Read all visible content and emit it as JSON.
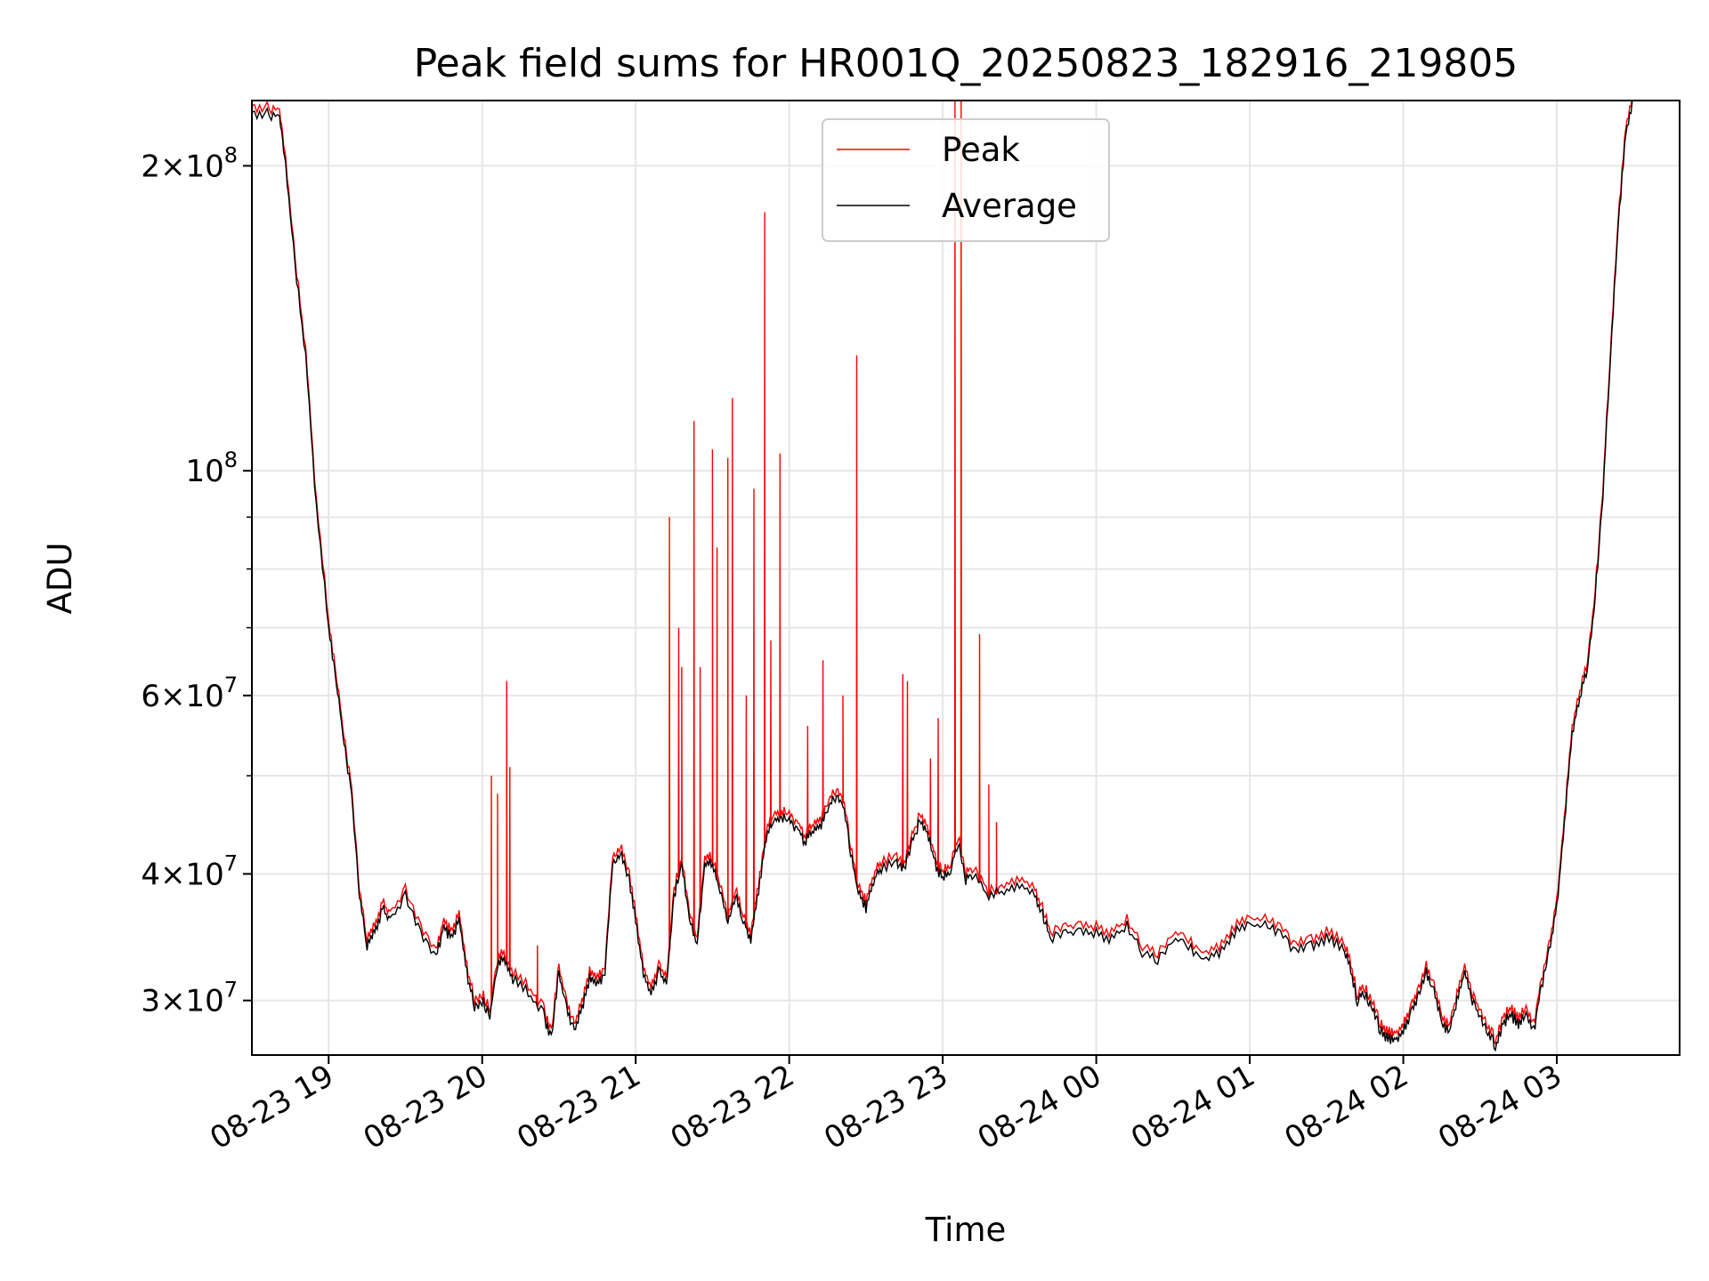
{
  "chart_data": {
    "type": "line",
    "title": "Peak field sums for HR001Q_20250823_182916_219805",
    "xlabel": "Time",
    "ylabel": "ADU",
    "x_unit": "hours since 2025-08-23 00:00 (tick labels show MM-DD HH)",
    "yscale": "log",
    "ylim": [
      26500000,
      232000000
    ],
    "xlim": [
      18.5,
      27.8
    ],
    "grid": true,
    "legend_position": "top-center",
    "x_ticks": [
      {
        "x": 19,
        "label": "08-23 19"
      },
      {
        "x": 20,
        "label": "08-23 20"
      },
      {
        "x": 21,
        "label": "08-23 21"
      },
      {
        "x": 22,
        "label": "08-23 22"
      },
      {
        "x": 23,
        "label": "08-23 23"
      },
      {
        "x": 24,
        "label": "08-24 00"
      },
      {
        "x": 25,
        "label": "08-24 01"
      },
      {
        "x": 26,
        "label": "08-24 02"
      },
      {
        "x": 27,
        "label": "08-24 03"
      }
    ],
    "y_major_ticks": [
      {
        "value": 30000000,
        "mant": "3",
        "exp": "7"
      },
      {
        "value": 40000000,
        "mant": "4",
        "exp": "7"
      },
      {
        "value": 60000000,
        "mant": "6",
        "exp": "7"
      },
      {
        "value": 100000000,
        "mant": "",
        "exp": "8"
      },
      {
        "value": 200000000,
        "mant": "2",
        "exp": "8"
      }
    ],
    "y_minor_ticks": [
      50000000,
      70000000,
      80000000,
      90000000
    ],
    "series": [
      {
        "name": "Average",
        "color": "#000000",
        "points": [
          [
            18.5,
            226000000
          ],
          [
            18.6,
            225000000
          ],
          [
            18.68,
            224000000
          ],
          [
            18.72,
            200000000
          ],
          [
            18.78,
            160000000
          ],
          [
            18.85,
            130000000
          ],
          [
            18.92,
            92000000
          ],
          [
            19.0,
            70000000
          ],
          [
            19.05,
            62000000
          ],
          [
            19.1,
            54000000
          ],
          [
            19.15,
            48000000
          ],
          [
            19.2,
            38000000
          ],
          [
            19.25,
            34000000
          ],
          [
            19.3,
            35000000
          ],
          [
            19.35,
            37000000
          ],
          [
            19.4,
            36000000
          ],
          [
            19.5,
            38000000
          ],
          [
            19.6,
            35000000
          ],
          [
            19.7,
            33000000
          ],
          [
            19.75,
            35500000
          ],
          [
            19.8,
            34500000
          ],
          [
            19.85,
            36000000
          ],
          [
            19.9,
            32000000
          ],
          [
            19.95,
            29500000
          ],
          [
            20.0,
            30000000
          ],
          [
            20.05,
            29000000
          ],
          [
            20.1,
            32500000
          ],
          [
            20.15,
            33000000
          ],
          [
            20.2,
            31500000
          ],
          [
            20.3,
            30500000
          ],
          [
            20.4,
            29000000
          ],
          [
            20.45,
            27500000
          ],
          [
            20.5,
            32000000
          ],
          [
            20.55,
            29500000
          ],
          [
            20.6,
            28000000
          ],
          [
            20.65,
            29500000
          ],
          [
            20.7,
            31500000
          ],
          [
            20.75,
            31000000
          ],
          [
            20.8,
            32000000
          ],
          [
            20.85,
            41000000
          ],
          [
            20.9,
            42000000
          ],
          [
            20.95,
            40000000
          ],
          [
            21.0,
            36000000
          ],
          [
            21.05,
            32000000
          ],
          [
            21.1,
            30500000
          ],
          [
            21.15,
            32000000
          ],
          [
            21.2,
            31000000
          ],
          [
            21.25,
            38000000
          ],
          [
            21.3,
            41000000
          ],
          [
            21.35,
            36000000
          ],
          [
            21.4,
            34000000
          ],
          [
            21.45,
            41000000
          ],
          [
            21.5,
            41000000
          ],
          [
            21.55,
            38500000
          ],
          [
            21.6,
            36000000
          ],
          [
            21.65,
            38000000
          ],
          [
            21.7,
            36000000
          ],
          [
            21.75,
            34500000
          ],
          [
            21.8,
            38500000
          ],
          [
            21.85,
            43500000
          ],
          [
            21.9,
            45000000
          ],
          [
            21.95,
            45500000
          ],
          [
            22.0,
            45000000
          ],
          [
            22.05,
            44500000
          ],
          [
            22.1,
            43000000
          ],
          [
            22.15,
            44000000
          ],
          [
            22.2,
            44500000
          ],
          [
            22.25,
            46500000
          ],
          [
            22.3,
            47500000
          ],
          [
            22.35,
            47000000
          ],
          [
            22.4,
            42000000
          ],
          [
            22.45,
            38500000
          ],
          [
            22.5,
            37000000
          ],
          [
            22.55,
            39500000
          ],
          [
            22.6,
            40500000
          ],
          [
            22.7,
            41000000
          ],
          [
            22.75,
            40500000
          ],
          [
            22.8,
            43000000
          ],
          [
            22.85,
            45000000
          ],
          [
            22.9,
            44000000
          ],
          [
            22.95,
            41000000
          ],
          [
            23.0,
            39500000
          ],
          [
            23.05,
            40500000
          ],
          [
            23.1,
            43000000
          ],
          [
            23.15,
            39500000
          ],
          [
            23.2,
            40000000
          ],
          [
            23.3,
            38000000
          ],
          [
            23.4,
            38500000
          ],
          [
            23.5,
            39000000
          ],
          [
            23.6,
            38000000
          ],
          [
            23.65,
            36500000
          ],
          [
            23.7,
            34500000
          ],
          [
            23.8,
            35000000
          ],
          [
            23.9,
            35000000
          ],
          [
            24.0,
            35000000
          ],
          [
            24.1,
            34500000
          ],
          [
            24.2,
            35500000
          ],
          [
            24.3,
            33500000
          ],
          [
            24.4,
            33000000
          ],
          [
            24.5,
            34500000
          ],
          [
            24.6,
            34000000
          ],
          [
            24.7,
            33000000
          ],
          [
            24.8,
            33500000
          ],
          [
            24.9,
            35000000
          ],
          [
            25.0,
            35500000
          ],
          [
            25.1,
            35500000
          ],
          [
            25.2,
            35000000
          ],
          [
            25.3,
            33500000
          ],
          [
            25.4,
            34000000
          ],
          [
            25.5,
            34500000
          ],
          [
            25.6,
            34000000
          ],
          [
            25.65,
            32500000
          ],
          [
            25.7,
            30000000
          ],
          [
            25.75,
            30500000
          ],
          [
            25.8,
            29500000
          ],
          [
            25.85,
            28000000
          ],
          [
            25.9,
            27500000
          ],
          [
            25.95,
            27500000
          ],
          [
            26.0,
            28000000
          ],
          [
            26.05,
            29000000
          ],
          [
            26.1,
            30500000
          ],
          [
            26.15,
            32000000
          ],
          [
            26.2,
            30500000
          ],
          [
            26.25,
            28500000
          ],
          [
            26.3,
            28000000
          ],
          [
            26.35,
            30000000
          ],
          [
            26.4,
            32000000
          ],
          [
            26.45,
            30000000
          ],
          [
            26.5,
            29000000
          ],
          [
            26.55,
            28000000
          ],
          [
            26.6,
            27000000
          ],
          [
            26.65,
            28500000
          ],
          [
            26.7,
            29000000
          ],
          [
            26.75,
            28500000
          ],
          [
            26.8,
            29000000
          ],
          [
            26.85,
            28000000
          ],
          [
            26.9,
            31000000
          ],
          [
            26.95,
            33500000
          ],
          [
            27.0,
            37000000
          ],
          [
            27.05,
            45000000
          ],
          [
            27.1,
            55000000
          ],
          [
            27.15,
            60000000
          ],
          [
            27.2,
            64000000
          ],
          [
            27.25,
            75000000
          ],
          [
            27.3,
            95000000
          ],
          [
            27.35,
            130000000
          ],
          [
            27.4,
            175000000
          ],
          [
            27.45,
            215000000
          ],
          [
            27.5,
            232000000
          ]
        ]
      },
      {
        "name": "Peak",
        "color": "#ff0000",
        "spikes": [
          [
            20.06,
            50000000
          ],
          [
            20.1,
            48000000
          ],
          [
            20.16,
            62000000
          ],
          [
            20.18,
            51000000
          ],
          [
            20.36,
            34000000
          ],
          [
            21.22,
            90000000
          ],
          [
            21.28,
            70000000
          ],
          [
            21.3,
            64000000
          ],
          [
            21.38,
            112000000
          ],
          [
            21.42,
            64000000
          ],
          [
            21.5,
            105000000
          ],
          [
            21.53,
            84000000
          ],
          [
            21.6,
            103000000
          ],
          [
            21.63,
            118000000
          ],
          [
            21.72,
            60000000
          ],
          [
            21.77,
            96000000
          ],
          [
            21.84,
            180000000
          ],
          [
            21.88,
            68000000
          ],
          [
            21.94,
            104000000
          ],
          [
            22.12,
            56000000
          ],
          [
            22.22,
            65000000
          ],
          [
            22.35,
            60000000
          ],
          [
            22.44,
            130000000
          ],
          [
            22.74,
            63000000
          ],
          [
            22.77,
            62000000
          ],
          [
            22.92,
            52000000
          ],
          [
            22.97,
            57000000
          ],
          [
            23.08,
            232000000
          ],
          [
            23.12,
            232000000
          ],
          [
            23.24,
            69000000
          ],
          [
            23.3,
            49000000
          ],
          [
            23.35,
            45000000
          ]
        ]
      }
    ]
  }
}
